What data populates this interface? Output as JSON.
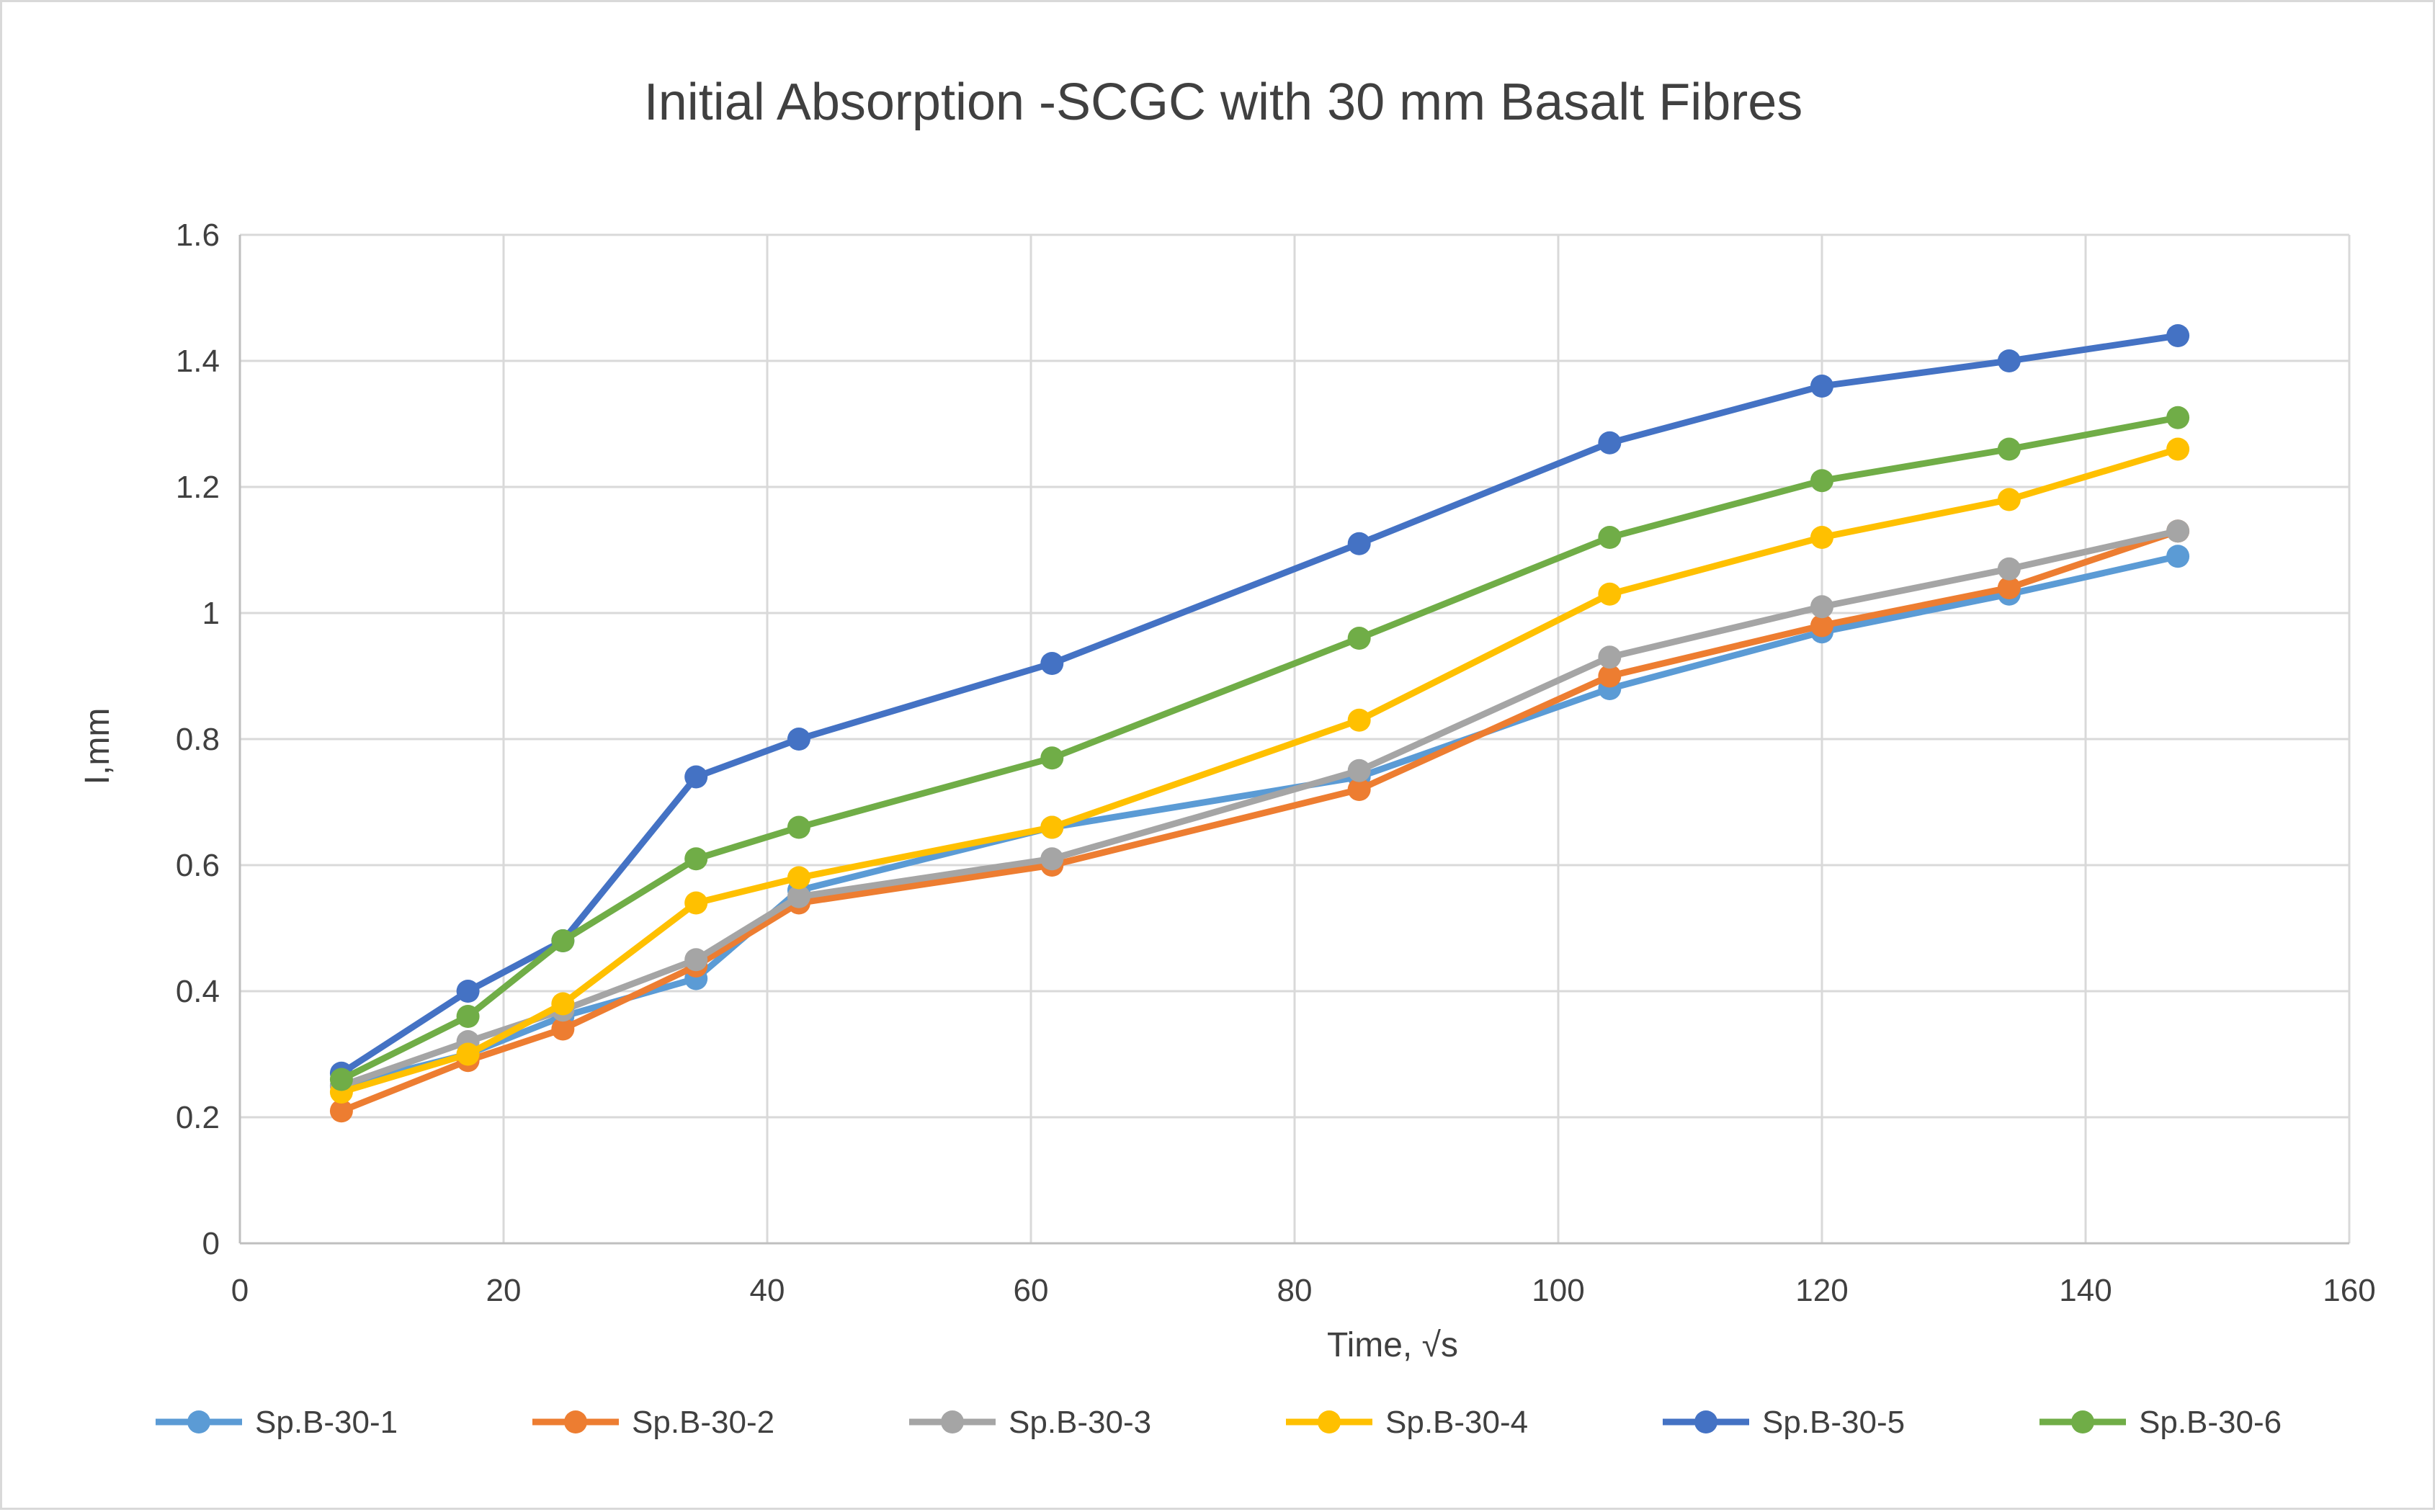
{
  "chart_data": {
    "type": "line",
    "title": "Initial Absorption -SCGC with 30 mm Basalt Fibres",
    "xlabel": "Time, √s",
    "ylabel": "I,mm",
    "xlim": [
      0,
      160
    ],
    "ylim": [
      0,
      1.6
    ],
    "x_ticks": [
      "0",
      "20",
      "40",
      "60",
      "80",
      "100",
      "120",
      "140",
      "160"
    ],
    "y_ticks": [
      "0",
      "0.2",
      "0.4",
      "0.6",
      "0.8",
      "1",
      "1.2",
      "1.4",
      "1.6"
    ],
    "grid": true,
    "legend_position": "bottom",
    "x": [
      7.7,
      17.3,
      24.5,
      34.6,
      42.4,
      61.6,
      84.9,
      103.9,
      120.0,
      134.2,
      147.0
    ],
    "series": [
      {
        "name": "Sp.B-30-1",
        "color": "#5b9bd5",
        "values": [
          0.25,
          0.3,
          0.36,
          0.42,
          0.56,
          0.66,
          0.74,
          0.88,
          0.97,
          1.03,
          1.09
        ]
      },
      {
        "name": "Sp.B-30-2",
        "color": "#ed7d31",
        "values": [
          0.21,
          0.29,
          0.34,
          0.44,
          0.54,
          0.6,
          0.72,
          0.9,
          0.98,
          1.04,
          1.13
        ]
      },
      {
        "name": "Sp.B-30-3",
        "color": "#a5a5a5",
        "values": [
          0.25,
          0.32,
          0.37,
          0.45,
          0.55,
          0.61,
          0.75,
          0.93,
          1.01,
          1.07,
          1.13
        ]
      },
      {
        "name": "Sp.B-30-4",
        "color": "#ffc000",
        "values": [
          0.24,
          0.3,
          0.38,
          0.54,
          0.58,
          0.66,
          0.83,
          1.03,
          1.12,
          1.18,
          1.26
        ]
      },
      {
        "name": "Sp.B-30-5",
        "color": "#4472c4",
        "values": [
          0.27,
          0.4,
          0.48,
          0.74,
          0.8,
          0.92,
          1.11,
          1.27,
          1.36,
          1.4,
          1.44
        ]
      },
      {
        "name": "Sp.B-30-6",
        "color": "#70ad47",
        "values": [
          0.26,
          0.36,
          0.48,
          0.61,
          0.66,
          0.77,
          0.96,
          1.12,
          1.21,
          1.26,
          1.31
        ]
      }
    ]
  }
}
